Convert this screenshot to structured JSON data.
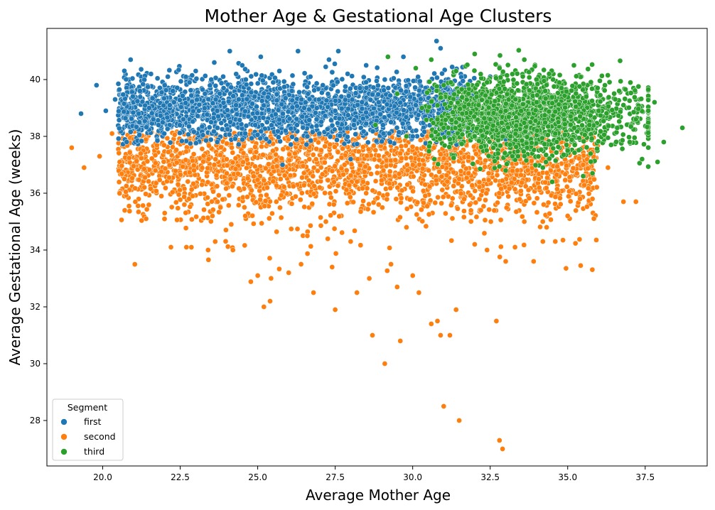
{
  "chart_data": {
    "type": "scatter",
    "title": "Mother Age & Gestational Age Clusters",
    "xlabel": "Average Mother Age",
    "ylabel": "Average Gestational Age (weeks)",
    "xlim": [
      18.2,
      39.5
    ],
    "ylim": [
      26.4,
      41.8
    ],
    "xticks": [
      "20.0",
      "22.5",
      "25.0",
      "27.5",
      "30.0",
      "32.5",
      "35.0",
      "37.5"
    ],
    "yticks": [
      "28",
      "30",
      "32",
      "34",
      "36",
      "38",
      "40"
    ],
    "grid": false,
    "legend": {
      "title": "Segment",
      "placement": "bottom-left",
      "entries": [
        {
          "label": "first",
          "color": "#1f77b4"
        },
        {
          "label": "second",
          "color": "#ff7f0e"
        },
        {
          "label": "third",
          "color": "#2ca02c"
        }
      ]
    },
    "series": [
      {
        "name": "first",
        "color": "#1f77b4",
        "points": [
          [
            19.3,
            38.8
          ],
          [
            19.8,
            39.8
          ],
          [
            20.1,
            38.9
          ],
          [
            20.4,
            39.3
          ],
          [
            20.9,
            40.7
          ],
          [
            21.2,
            39.6
          ],
          [
            21.5,
            39.0
          ],
          [
            21.8,
            38.4
          ],
          [
            22.0,
            39.8
          ],
          [
            22.1,
            40.1
          ],
          [
            22.3,
            39.2
          ],
          [
            22.6,
            38.6
          ],
          [
            22.8,
            39.9
          ],
          [
            23.0,
            40.3
          ],
          [
            23.1,
            38.9
          ],
          [
            23.3,
            39.5
          ],
          [
            23.5,
            40.0
          ],
          [
            23.7,
            38.3
          ],
          [
            23.9,
            39.7
          ],
          [
            24.1,
            41.0
          ],
          [
            24.3,
            39.1
          ],
          [
            24.5,
            40.5
          ],
          [
            24.7,
            38.7
          ],
          [
            24.9,
            39.4
          ],
          [
            25.1,
            40.8
          ],
          [
            25.3,
            38.5
          ],
          [
            25.5,
            39.9
          ],
          [
            25.7,
            40.3
          ],
          [
            25.9,
            38.2
          ],
          [
            26.1,
            39.6
          ],
          [
            26.3,
            41.0
          ],
          [
            26.5,
            39.0
          ],
          [
            26.7,
            40.1
          ],
          [
            26.9,
            38.6
          ],
          [
            27.1,
            39.8
          ],
          [
            27.3,
            40.7
          ],
          [
            27.5,
            38.9
          ],
          [
            27.7,
            39.4
          ],
          [
            27.9,
            40.2
          ],
          [
            28.1,
            38.4
          ],
          [
            28.3,
            39.7
          ],
          [
            28.5,
            40.5
          ],
          [
            28.7,
            38.8
          ],
          [
            28.9,
            39.2
          ],
          [
            29.1,
            40.0
          ],
          [
            29.3,
            38.5
          ],
          [
            29.5,
            39.5
          ],
          [
            29.7,
            40.8
          ],
          [
            29.9,
            38.3
          ],
          [
            30.1,
            39.1
          ],
          [
            30.4,
            38.7
          ],
          [
            30.9,
            41.1
          ],
          [
            31.2,
            39.3
          ],
          [
            31.6,
            38.2
          ],
          [
            32.0,
            38.8
          ],
          [
            32.5,
            40.1
          ],
          [
            33.0,
            37.9
          ],
          [
            33.8,
            38.1
          ],
          [
            35.0,
            38.4
          ],
          [
            25.8,
            37.0
          ],
          [
            28.0,
            37.2
          ],
          [
            30.0,
            38.0
          ],
          [
            23.6,
            40.6
          ],
          [
            27.6,
            41.0
          ],
          [
            24.6,
            38.1
          ],
          [
            26.6,
            38.0
          ]
        ]
      },
      {
        "name": "second",
        "color": "#ff7f0e",
        "points": [
          [
            19.0,
            37.6
          ],
          [
            19.4,
            36.9
          ],
          [
            19.9,
            37.3
          ],
          [
            20.3,
            38.1
          ],
          [
            20.7,
            36.5
          ],
          [
            21.0,
            37.9
          ],
          [
            21.4,
            35.1
          ],
          [
            21.7,
            36.8
          ],
          [
            22.0,
            35.3
          ],
          [
            22.2,
            34.1
          ],
          [
            22.5,
            37.4
          ],
          [
            22.7,
            34.1
          ],
          [
            22.9,
            35.9
          ],
          [
            23.2,
            36.3
          ],
          [
            23.4,
            34.0
          ],
          [
            23.6,
            37.0
          ],
          [
            23.8,
            35.5
          ],
          [
            24.0,
            36.7
          ],
          [
            24.2,
            34.0
          ],
          [
            24.4,
            37.8
          ],
          [
            24.6,
            35.2
          ],
          [
            24.8,
            36.1
          ],
          [
            25.0,
            33.1
          ],
          [
            25.2,
            32.0
          ],
          [
            25.4,
            32.2
          ],
          [
            25.6,
            35.7
          ],
          [
            25.8,
            36.9
          ],
          [
            26.0,
            33.2
          ],
          [
            26.2,
            37.4
          ],
          [
            26.4,
            33.5
          ],
          [
            26.6,
            34.5
          ],
          [
            26.8,
            32.5
          ],
          [
            27.0,
            36.2
          ],
          [
            27.2,
            35.0
          ],
          [
            27.4,
            33.4
          ],
          [
            27.5,
            31.9
          ],
          [
            27.8,
            37.0
          ],
          [
            28.0,
            34.3
          ],
          [
            28.2,
            32.5
          ],
          [
            28.4,
            36.4
          ],
          [
            28.6,
            33.0
          ],
          [
            28.7,
            31.0
          ],
          [
            28.9,
            35.6
          ],
          [
            29.1,
            30.0
          ],
          [
            29.3,
            33.5
          ],
          [
            29.5,
            32.7
          ],
          [
            29.6,
            30.8
          ],
          [
            29.8,
            34.8
          ],
          [
            30.0,
            33.1
          ],
          [
            30.2,
            32.5
          ],
          [
            30.4,
            36.3
          ],
          [
            30.6,
            31.4
          ],
          [
            30.8,
            31.5
          ],
          [
            30.9,
            31.0
          ],
          [
            31.0,
            28.5
          ],
          [
            31.2,
            31.0
          ],
          [
            31.4,
            31.9
          ],
          [
            31.5,
            28.0
          ],
          [
            31.8,
            36.7
          ],
          [
            32.0,
            34.2
          ],
          [
            32.2,
            35.4
          ],
          [
            32.4,
            34.0
          ],
          [
            32.7,
            31.5
          ],
          [
            32.8,
            27.3
          ],
          [
            32.9,
            27.0
          ],
          [
            33.0,
            33.6
          ],
          [
            33.3,
            34.1
          ],
          [
            33.6,
            35.0
          ],
          [
            33.9,
            33.6
          ],
          [
            34.2,
            34.3
          ],
          [
            34.6,
            34.3
          ],
          [
            35.0,
            35.2
          ],
          [
            35.4,
            35.8
          ],
          [
            35.8,
            35.8
          ],
          [
            36.3,
            36.9
          ],
          [
            36.8,
            35.7
          ],
          [
            37.2,
            35.7
          ],
          [
            26.0,
            37.9
          ],
          [
            28.5,
            36.0
          ],
          [
            30.0,
            37.0
          ],
          [
            31.5,
            36.5
          ],
          [
            24.0,
            38.2
          ],
          [
            27.0,
            38.0
          ],
          [
            29.6,
            37.4
          ],
          [
            33.5,
            37.5
          ]
        ]
      },
      {
        "name": "third",
        "color": "#2ca02c",
        "points": [
          [
            28.8,
            38.4
          ],
          [
            29.2,
            40.8
          ],
          [
            29.5,
            39.5
          ],
          [
            29.8,
            38.0
          ],
          [
            30.1,
            40.4
          ],
          [
            30.3,
            39.0
          ],
          [
            30.6,
            40.7
          ],
          [
            30.8,
            38.6
          ],
          [
            31.0,
            39.8
          ],
          [
            31.2,
            37.9
          ],
          [
            31.4,
            40.3
          ],
          [
            31.6,
            38.8
          ],
          [
            31.8,
            39.5
          ],
          [
            32.0,
            40.9
          ],
          [
            32.2,
            38.2
          ],
          [
            32.4,
            39.9
          ],
          [
            32.6,
            37.6
          ],
          [
            32.8,
            40.4
          ],
          [
            33.0,
            38.9
          ],
          [
            33.2,
            39.6
          ],
          [
            33.4,
            37.3
          ],
          [
            33.6,
            40.7
          ],
          [
            33.8,
            38.5
          ],
          [
            34.0,
            39.2
          ],
          [
            34.2,
            36.9
          ],
          [
            34.4,
            40.2
          ],
          [
            34.6,
            38.1
          ],
          [
            34.8,
            39.7
          ],
          [
            35.0,
            37.5
          ],
          [
            35.2,
            40.5
          ],
          [
            35.4,
            38.7
          ],
          [
            35.6,
            39.4
          ],
          [
            35.8,
            36.7
          ],
          [
            36.0,
            38.9
          ],
          [
            36.2,
            39.8
          ],
          [
            36.4,
            37.7
          ],
          [
            36.6,
            38.3
          ],
          [
            36.8,
            39.1
          ],
          [
            37.0,
            37.8
          ],
          [
            37.2,
            38.6
          ],
          [
            37.4,
            37.2
          ],
          [
            37.6,
            38.9
          ],
          [
            37.8,
            39.2
          ],
          [
            37.9,
            37.1
          ],
          [
            38.1,
            37.8
          ],
          [
            38.7,
            38.3
          ],
          [
            33.0,
            36.8
          ],
          [
            34.5,
            36.4
          ],
          [
            35.5,
            36.6
          ],
          [
            31.0,
            38.3
          ],
          [
            32.5,
            38.6
          ],
          [
            33.5,
            38.9
          ],
          [
            34.7,
            38.5
          ],
          [
            35.7,
            38.4
          ]
        ]
      }
    ]
  }
}
